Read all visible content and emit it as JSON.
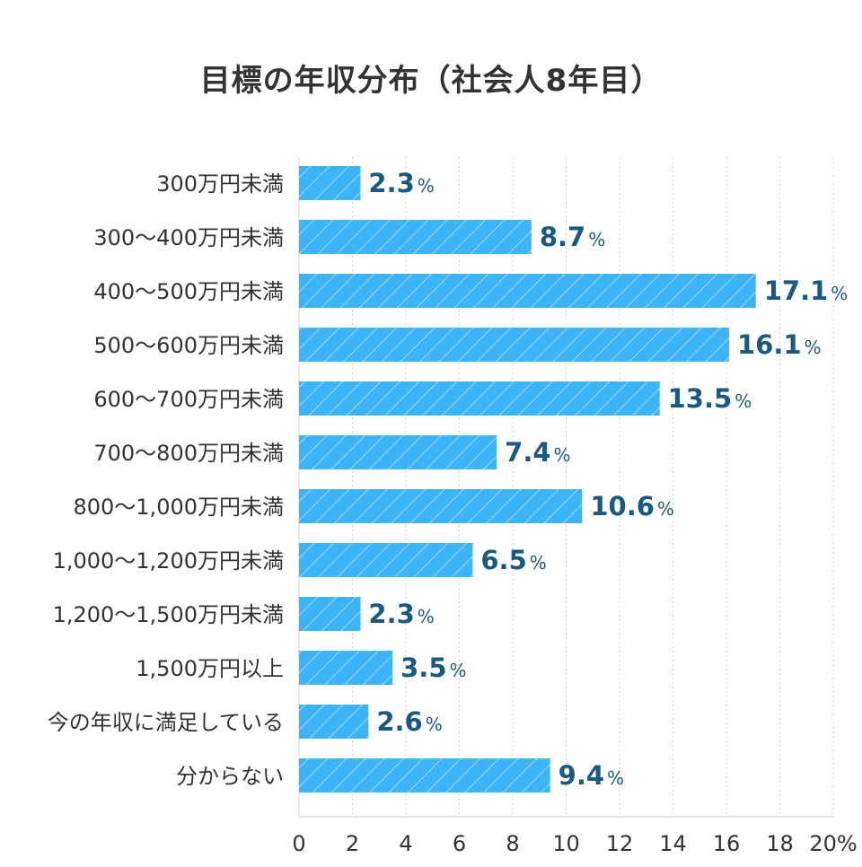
{
  "chart_data": {
    "type": "bar",
    "orientation": "horizontal",
    "title": "目標の年収分布（社会人8年目）",
    "categories": [
      "300万円未満",
      "300〜400万円未満",
      "400〜500万円未満",
      "500〜600万円未満",
      "600〜700万円未満",
      "700〜800万円未満",
      "800〜1,000万円未満",
      "1,000〜1,200万円未満",
      "1,200〜1,500万円未満",
      "1,500万円以上",
      "今の年収に満足している",
      "分からない"
    ],
    "values": [
      2.3,
      8.7,
      17.1,
      16.1,
      13.5,
      7.4,
      10.6,
      6.5,
      2.3,
      3.5,
      2.6,
      9.4
    ],
    "value_labels": [
      "2.3",
      "8.7",
      "17.1",
      "16.1",
      "13.5",
      "7.4",
      "10.6",
      "6.5",
      "2.3",
      "3.5",
      "2.6",
      "9.4"
    ],
    "value_unit": "%",
    "xlim": [
      0,
      20
    ],
    "xticks": [
      "0",
      "2",
      "4",
      "6",
      "8",
      "10",
      "12",
      "14",
      "16",
      "18",
      "20%"
    ],
    "grid": true,
    "legend": "none",
    "colors": {
      "bar": "#3cb4f5",
      "hatch": "#9bdaff",
      "value_label": "#1b5a80",
      "category_label": "#333333"
    }
  }
}
